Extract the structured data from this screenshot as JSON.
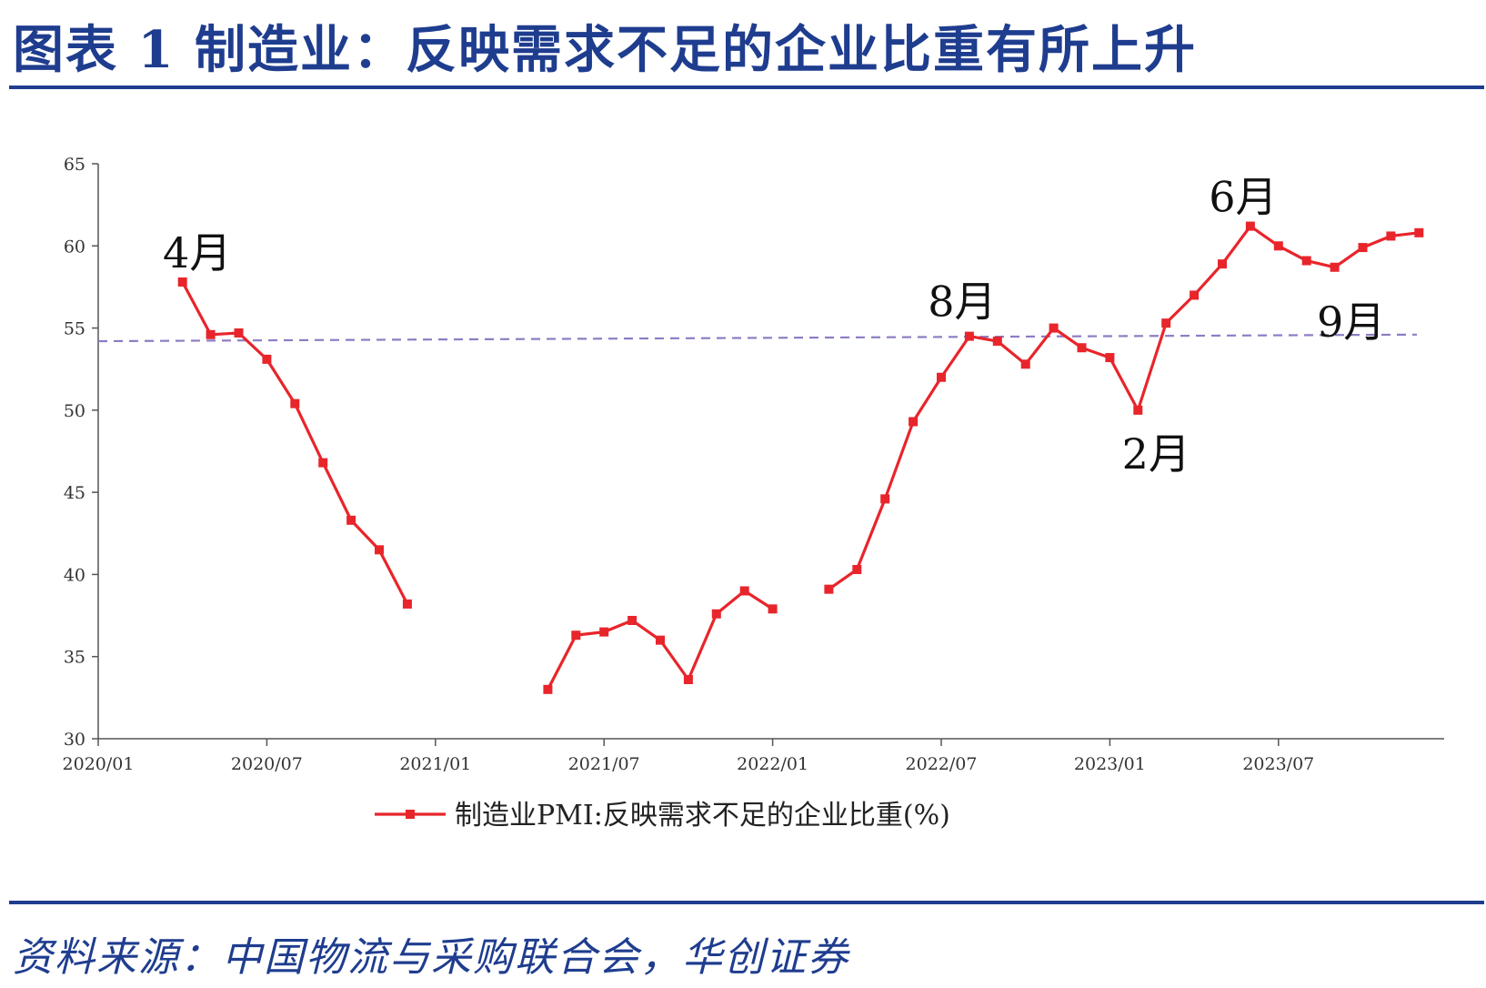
{
  "header": {
    "title": "图表 1    制造业：反映需求不足的企业比重有所上升"
  },
  "footer": {
    "source": "资料来源：中国物流与采购联合会，华创证券"
  },
  "colors": {
    "series": "#E8252B",
    "reference": "#8E7CC3",
    "brand": "#1F3D8F"
  },
  "chart_data": {
    "type": "line",
    "title": "",
    "xlabel": "",
    "ylabel": "",
    "ylim": [
      30,
      65
    ],
    "yticks": [
      "30",
      "35",
      "40",
      "45",
      "50",
      "55",
      "60",
      "65"
    ],
    "xticks": [
      "2020/01",
      "2020/07",
      "2021/01",
      "2021/07",
      "2022/01",
      "2022/07",
      "2023/01",
      "2023/07"
    ],
    "legend_position": "bottom",
    "series": [
      {
        "name": "制造业PMI:反映需求不足的企业比重(%)",
        "segments": [
          {
            "start": "2020-04",
            "values": [
              57.8,
              54.6,
              54.7,
              53.1,
              50.4,
              46.8,
              43.3,
              41.5,
              38.2
            ]
          },
          {
            "start": "2021-05",
            "values": [
              33.0,
              36.3,
              36.5,
              37.2,
              36.0,
              33.6,
              37.6,
              39.0,
              37.9
            ]
          },
          {
            "start": "2022-03",
            "values": [
              39.1,
              40.3,
              44.6,
              49.3,
              52.0,
              54.5,
              54.2,
              52.8,
              55.0,
              53.8,
              53.2,
              50.0,
              55.3,
              57.0,
              58.9,
              61.2,
              60.0,
              59.1,
              58.7,
              59.9,
              60.6,
              60.8
            ]
          }
        ]
      }
    ],
    "reference_line": {
      "from": 54.2,
      "to": 54.6
    },
    "annotations": [
      {
        "text": "4月",
        "date": "2020-04"
      },
      {
        "text": "8月",
        "date": "2022-08"
      },
      {
        "text": "2月",
        "date": "2023-02"
      },
      {
        "text": "6月",
        "date": "2023-06"
      },
      {
        "text": "9月",
        "date": "2023-09"
      }
    ]
  }
}
